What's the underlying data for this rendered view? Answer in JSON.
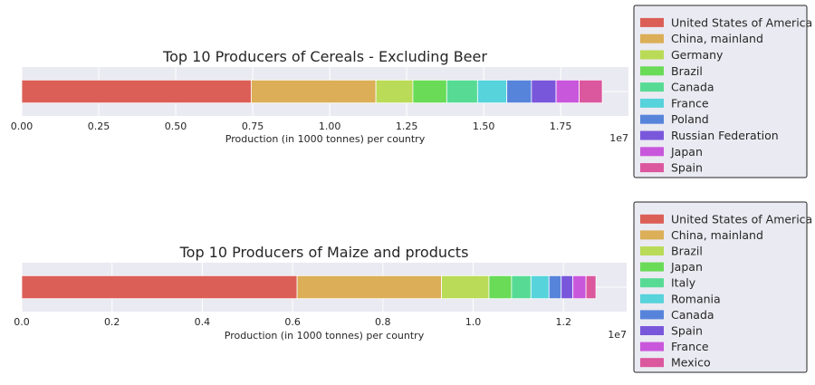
{
  "chart_data": [
    {
      "type": "bar",
      "orientation": "horizontal-stacked",
      "title": "Top 10 Producers of Cereals - Excluding Beer",
      "xlabel": "Production (in 1000 tonnes) per country",
      "offset_label": "1e7",
      "xlim": [
        0,
        19700000
      ],
      "xticks": [
        0,
        2500000,
        5000000,
        7500000,
        10000000,
        12500000,
        15000000,
        17500000
      ],
      "xtick_labels": [
        "0.00",
        "0.25",
        "0.50",
        "0.75",
        "1.00",
        "1.25",
        "1.50",
        "1.75"
      ],
      "grid": true,
      "legend_position": "right",
      "series": [
        {
          "name": "United States of America",
          "values": [
            7450000
          ],
          "color": "#db5f57"
        },
        {
          "name": "China, mainland",
          "values": [
            4050000
          ],
          "color": "#dbae57"
        },
        {
          "name": "Germany",
          "values": [
            1200000
          ],
          "color": "#b9db57"
        },
        {
          "name": "Brazil",
          "values": [
            1100000
          ],
          "color": "#69db57"
        },
        {
          "name": "Canada",
          "values": [
            1000000
          ],
          "color": "#57db94"
        },
        {
          "name": "France",
          "values": [
            950000
          ],
          "color": "#57d3db"
        },
        {
          "name": "Poland",
          "values": [
            800000
          ],
          "color": "#5784db"
        },
        {
          "name": "Russian Federation",
          "values": [
            800000
          ],
          "color": "#7957db"
        },
        {
          "name": "Japan",
          "values": [
            750000
          ],
          "color": "#c957db"
        },
        {
          "name": "Spain",
          "values": [
            750000
          ],
          "color": "#db579e"
        }
      ]
    },
    {
      "type": "bar",
      "orientation": "horizontal-stacked",
      "title": "Top 10 Producers of Maize and products",
      "xlabel": "Production (in 1000 tonnes) per country",
      "offset_label": "1e7",
      "xlim": [
        0,
        13400000
      ],
      "xticks": [
        0,
        2000000,
        4000000,
        6000000,
        8000000,
        10000000,
        12000000
      ],
      "xtick_labels": [
        "0.0",
        "0.2",
        "0.4",
        "0.6",
        "0.8",
        "1.0",
        "1.2"
      ],
      "grid": true,
      "legend_position": "right",
      "series": [
        {
          "name": "United States of America",
          "values": [
            6100000
          ],
          "color": "#db5f57"
        },
        {
          "name": "China, mainland",
          "values": [
            3200000
          ],
          "color": "#dbae57"
        },
        {
          "name": "Brazil",
          "values": [
            1050000
          ],
          "color": "#b9db57"
        },
        {
          "name": "Japan",
          "values": [
            500000
          ],
          "color": "#69db57"
        },
        {
          "name": "Italy",
          "values": [
            430000
          ],
          "color": "#57db94"
        },
        {
          "name": "Romania",
          "values": [
            400000
          ],
          "color": "#57d3db"
        },
        {
          "name": "Canada",
          "values": [
            270000
          ],
          "color": "#5784db"
        },
        {
          "name": "Spain",
          "values": [
            260000
          ],
          "color": "#7957db"
        },
        {
          "name": "France",
          "values": [
            290000
          ],
          "color": "#c957db"
        },
        {
          "name": "Mexico",
          "values": [
            220000
          ],
          "color": "#db579e"
        }
      ]
    }
  ]
}
